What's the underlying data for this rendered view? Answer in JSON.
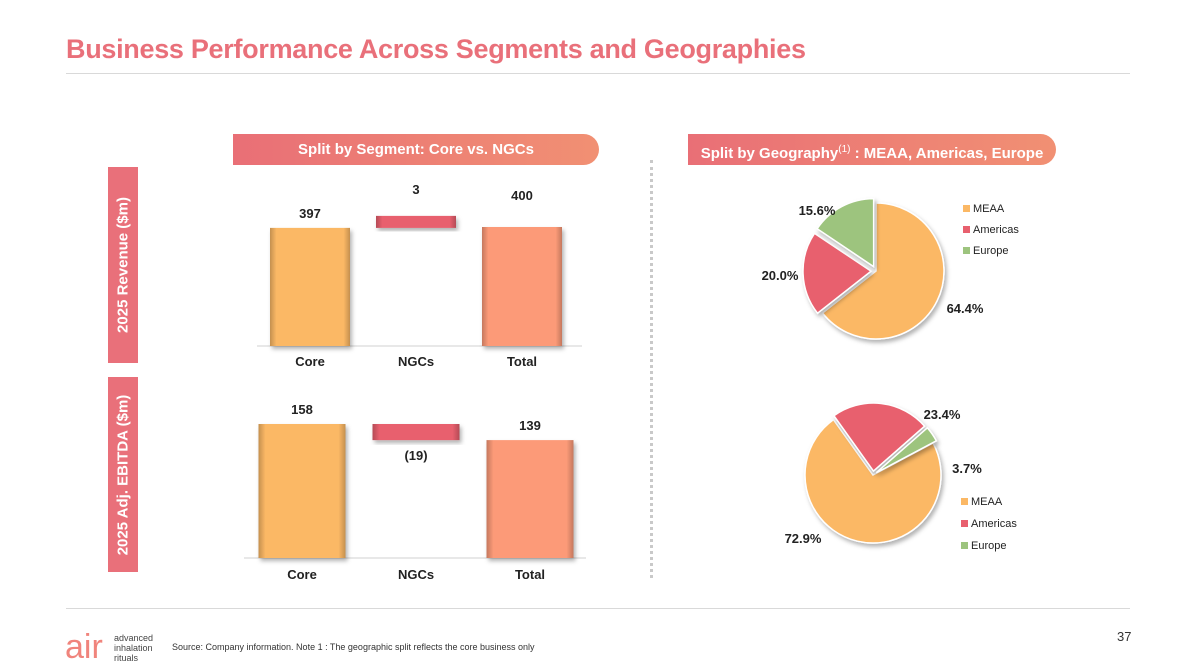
{
  "title": "Business Performance Across Segments and Geographies",
  "banners": {
    "segment": "Split by Segment: Core vs. NGCs",
    "geography_prefix": "Split by Geography",
    "geography_sup": "(1)",
    "geography_suffix": " : MEAA, Americas, Europe"
  },
  "row_labels": {
    "revenue": "2025 Revenue ($m)",
    "ebitda": "2025 Adj. EBITDA ($m)"
  },
  "colors": {
    "accent": "#e9707a",
    "core": "#fbb865",
    "ngcs": "#e8606e",
    "total": "#fc9a78",
    "meaa": "#fbb865",
    "americas": "#e8606e",
    "europe": "#9dc47e"
  },
  "chart_data": [
    {
      "type": "bar",
      "subtype": "waterfall",
      "id": "revenue-waterfall",
      "categories": [
        "Core",
        "NGCs",
        "Total"
      ],
      "values": [
        397,
        3,
        400
      ],
      "data_labels": [
        "397",
        "3",
        "400"
      ],
      "ylim": [
        0,
        400
      ]
    },
    {
      "type": "bar",
      "subtype": "waterfall",
      "id": "ebitda-waterfall",
      "categories": [
        "Core",
        "NGCs",
        "Total"
      ],
      "values": [
        158,
        -19,
        139
      ],
      "data_labels": [
        "158",
        "(19)",
        "139"
      ],
      "ylim": [
        0,
        158
      ]
    },
    {
      "type": "pie",
      "id": "revenue-geography-pie",
      "categories": [
        "MEAA",
        "Americas",
        "Europe"
      ],
      "values": [
        64.4,
        20.0,
        15.6
      ],
      "data_labels": [
        "64.4%",
        "20.0%",
        "15.6%"
      ],
      "legend": "right"
    },
    {
      "type": "pie",
      "id": "ebitda-geography-pie",
      "categories": [
        "MEAA",
        "Americas",
        "Europe"
      ],
      "values": [
        72.9,
        23.4,
        3.7
      ],
      "data_labels": [
        "72.9%",
        "23.4%",
        "3.7%"
      ],
      "legend": "bottom-right"
    }
  ],
  "footer": {
    "page_number": "37",
    "source": "Source: Company information. Note 1 : The geographic split reflects the core business only",
    "logo_mark": "air",
    "logo_words": [
      "advanced",
      "inhalation",
      "rituals"
    ]
  }
}
